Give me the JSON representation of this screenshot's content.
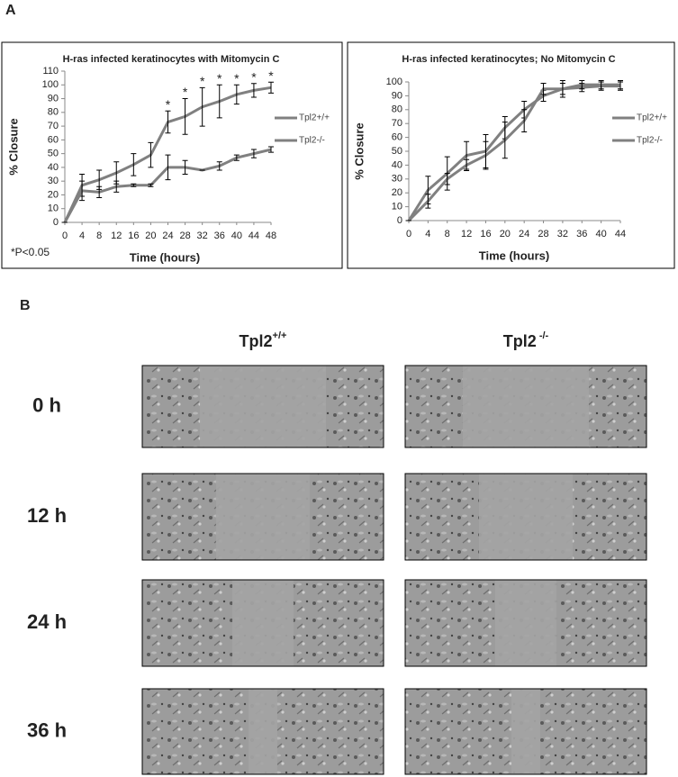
{
  "panel_a": {
    "label": "A"
  },
  "chart_data": [
    {
      "type": "line",
      "title": "H-ras infected keratinocytes with Mitomycin C",
      "xlabel": "Time (hours)",
      "ylabel": "% Closure",
      "x": [
        0,
        4,
        8,
        12,
        16,
        20,
        24,
        28,
        32,
        36,
        40,
        44,
        48
      ],
      "series": [
        {
          "name": "Tpl2+/+",
          "color": "#808080",
          "values": [
            0,
            27,
            31,
            36,
            42,
            49,
            73,
            77,
            84,
            88,
            93,
            96,
            98
          ],
          "errors": [
            0,
            8,
            7,
            8,
            8,
            9,
            8,
            13,
            14,
            12,
            7,
            5,
            4
          ]
        },
        {
          "name": "Tpl2-/-",
          "color": "#808080",
          "values": [
            0,
            23,
            22,
            26,
            27,
            27,
            40,
            40,
            38,
            41,
            47,
            50,
            53
          ],
          "errors": [
            0,
            7,
            4,
            4,
            1,
            1,
            9,
            5,
            0,
            3,
            2,
            3,
            2
          ]
        }
      ],
      "annotations": [
        {
          "text": "*",
          "x": 24
        },
        {
          "text": "*",
          "x": 28
        },
        {
          "text": "*",
          "x": 32
        },
        {
          "text": "*",
          "x": 36
        },
        {
          "text": "*",
          "x": 40
        },
        {
          "text": "*",
          "x": 44
        },
        {
          "text": "*",
          "x": 48
        }
      ],
      "note": "*P<0.05",
      "xlim": [
        0,
        48
      ],
      "xticks": [
        0,
        4,
        8,
        12,
        16,
        20,
        24,
        28,
        32,
        36,
        40,
        44,
        48
      ],
      "ylim": [
        0,
        110
      ],
      "yticks": [
        0,
        10,
        20,
        30,
        40,
        50,
        60,
        70,
        80,
        90,
        100,
        110
      ],
      "grid": false,
      "legend": "right"
    },
    {
      "type": "line",
      "title": "H-ras infected keratinocytes; No Mitomycin C",
      "xlabel": "Time (hours)",
      "ylabel": "% Closure",
      "x": [
        0,
        4,
        8,
        12,
        16,
        20,
        24,
        28,
        32,
        36,
        40,
        44
      ],
      "series": [
        {
          "name": "Tpl2+/+",
          "color": "#808080",
          "values": [
            0,
            22,
            34,
            47,
            50,
            67,
            80,
            90,
            95,
            96,
            97,
            97
          ],
          "errors": [
            0,
            10,
            12,
            10,
            12,
            8,
            6,
            4,
            4,
            3,
            3,
            3
          ]
        },
        {
          "name": "Tpl2-/-",
          "color": "#808080",
          "values": [
            0,
            14,
            30,
            40,
            47,
            58,
            72,
            95,
            95,
            98,
            98,
            98
          ],
          "errors": [
            0,
            5,
            4,
            4,
            10,
            13,
            8,
            4,
            6,
            3,
            3,
            3
          ]
        }
      ],
      "xlim": [
        0,
        44
      ],
      "xticks": [
        0,
        4,
        8,
        12,
        16,
        20,
        24,
        28,
        32,
        36,
        40,
        44
      ],
      "ylim": [
        0,
        100
      ],
      "yticks": [
        0,
        10,
        20,
        30,
        40,
        50,
        60,
        70,
        80,
        90,
        100
      ],
      "grid": false,
      "legend": "right"
    }
  ],
  "panel_b": {
    "label": "B",
    "columns": [
      {
        "name": "Tpl2",
        "superscript": "+/+"
      },
      {
        "name": "Tpl2",
        "superscript": " -/-"
      }
    ],
    "rows": [
      "0 h",
      "12 h",
      "24 h",
      "36 h"
    ]
  }
}
